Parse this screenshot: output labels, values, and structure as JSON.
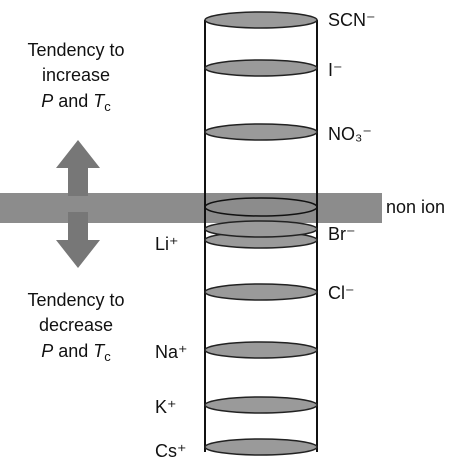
{
  "top_label": {
    "lines": [
      "Tendency to",
      "increase"
    ],
    "formula": [
      "P",
      " and ",
      "T",
      "c"
    ]
  },
  "bottom_label": {
    "lines": [
      "Tendency to",
      "decrease"
    ],
    "formula": [
      "P",
      " and ",
      "T",
      "c"
    ]
  },
  "anions": [
    "SCN⁻",
    "I⁻",
    "NO₃⁻",
    "Br⁻",
    "Cl⁻"
  ],
  "plane_label": "non ion",
  "cations": [
    "Li⁺",
    "Na⁺",
    "K⁺",
    "Cs⁺"
  ]
}
